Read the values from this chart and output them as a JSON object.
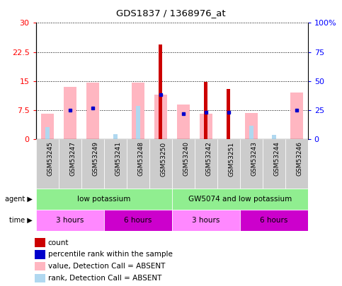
{
  "title": "GDS1837 / 1368976_at",
  "samples": [
    "GSM53245",
    "GSM53247",
    "GSM53249",
    "GSM53241",
    "GSM53248",
    "GSM53250",
    "GSM53240",
    "GSM53242",
    "GSM53251",
    "GSM53243",
    "GSM53244",
    "GSM53246"
  ],
  "red_bars": [
    0,
    0,
    0,
    0,
    0,
    24.5,
    0,
    14.8,
    13.0,
    0,
    0,
    0
  ],
  "pink_bars": [
    6.5,
    13.5,
    14.5,
    0,
    14.5,
    11.5,
    9.0,
    6.5,
    0,
    6.8,
    0,
    12.0
  ],
  "blue_squares_left": [
    0,
    7.5,
    8.0,
    0,
    0,
    11.5,
    6.5,
    7.0,
    7.0,
    0,
    0,
    7.5
  ],
  "blue_sq_visible": [
    false,
    true,
    true,
    false,
    false,
    true,
    true,
    true,
    true,
    false,
    false,
    true
  ],
  "light_blue_bars": [
    3.0,
    0,
    0,
    1.2,
    8.5,
    0,
    0,
    0,
    0,
    3.5,
    1.0,
    0
  ],
  "ylim_left": [
    0,
    30
  ],
  "ylim_right": [
    0,
    100
  ],
  "yticks_left": [
    0,
    7.5,
    15,
    22.5,
    30
  ],
  "yticks_right": [
    0,
    25,
    50,
    75,
    100
  ],
  "ytick_labels_left": [
    "0",
    "7.5",
    "15",
    "22.5",
    "30"
  ],
  "ytick_labels_right": [
    "0%",
    "25",
    "50",
    "75",
    "100%"
  ],
  "color_red": "#CC0000",
  "color_pink": "#FFB6C1",
  "color_blue": "#0000CC",
  "color_lightblue": "#B0D8F0",
  "color_agent_green": "#90EE90",
  "color_time_light": "#FF88FF",
  "color_time_dark": "#CC00CC",
  "color_bg_chart": "#ffffff",
  "color_xticklabel_bg": "#d0d0d0",
  "agent_data": [
    {
      "label": "low potassium",
      "start": 0,
      "end": 6
    },
    {
      "label": "GW5074 and low potassium",
      "start": 6,
      "end": 12
    }
  ],
  "time_data": [
    {
      "label": "3 hours",
      "start": 0,
      "end": 3,
      "light": true
    },
    {
      "label": "6 hours",
      "start": 3,
      "end": 6,
      "light": false
    },
    {
      "label": "3 hours",
      "start": 6,
      "end": 9,
      "light": true
    },
    {
      "label": "6 hours",
      "start": 9,
      "end": 12,
      "light": false
    }
  ],
  "legend_items": [
    {
      "color": "#CC0000",
      "label": "count"
    },
    {
      "color": "#0000CC",
      "label": "percentile rank within the sample"
    },
    {
      "color": "#FFB6C1",
      "label": "value, Detection Call = ABSENT"
    },
    {
      "color": "#B0D8F0",
      "label": "rank, Detection Call = ABSENT"
    }
  ]
}
